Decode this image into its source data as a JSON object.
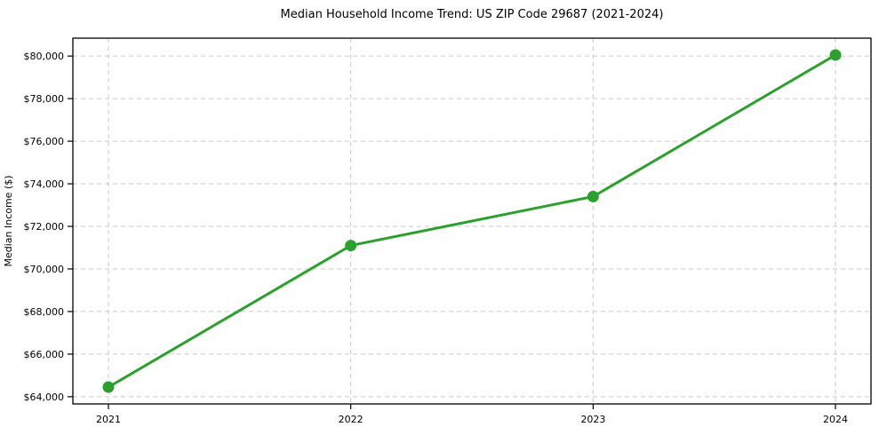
{
  "chart_data": {
    "type": "line",
    "title": "Median Household Income Trend: US ZIP Code 29687 (2021-2024)",
    "xlabel": "",
    "ylabel": "Median Income ($)",
    "categories": [
      "2021",
      "2022",
      "2023",
      "2024"
    ],
    "series": [
      {
        "values": [
          64450,
          71100,
          73400,
          80050
        ],
        "color": "#2ca02c",
        "marker": "circle",
        "line_width": 3,
        "marker_radius": 6.5
      }
    ],
    "y_ticks": [
      64000,
      66000,
      68000,
      70000,
      72000,
      74000,
      76000,
      78000,
      80000
    ],
    "y_tick_labels": [
      "$64,000",
      "$66,000",
      "$68,000",
      "$70,000",
      "$72,000",
      "$74,000",
      "$76,000",
      "$78,000",
      "$80,000"
    ],
    "ylim": [
      63660,
      80840
    ],
    "grid": true,
    "grid_style": "dashed",
    "legend_position": "none"
  },
  "colors": {
    "line": "#2ca02c",
    "grid": "#c9c9c9",
    "spine": "#000000",
    "text": "#000000",
    "background": "#ffffff"
  }
}
